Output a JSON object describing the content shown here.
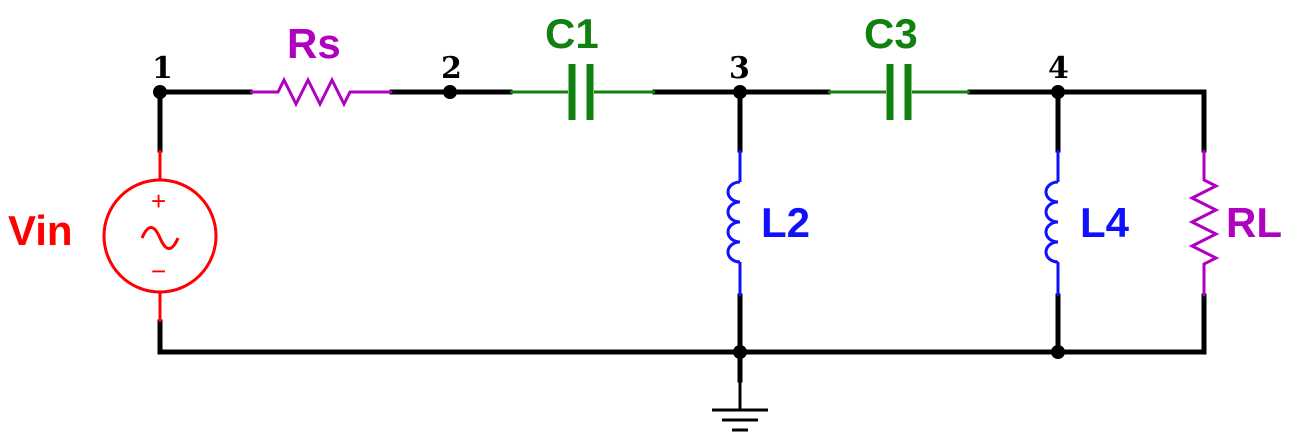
{
  "colors": {
    "wire": "#000000",
    "source": "#ff0000",
    "resistor": "#b000c0",
    "capacitor": "#108010",
    "inductor": "#1010ff"
  },
  "nodes": [
    "1",
    "2",
    "3",
    "4"
  ],
  "components": {
    "source": {
      "label": "Vin",
      "plus": "+",
      "minus": "−"
    },
    "source_resistor": {
      "label": "Rs"
    },
    "capacitor_1": {
      "label": "C1"
    },
    "capacitor_3": {
      "label": "C3"
    },
    "inductor_2": {
      "label": "L2"
    },
    "inductor_4": {
      "label": "L4"
    },
    "load_resistor": {
      "label": "RL"
    }
  },
  "ground": {
    "icon": "ground-icon"
  }
}
